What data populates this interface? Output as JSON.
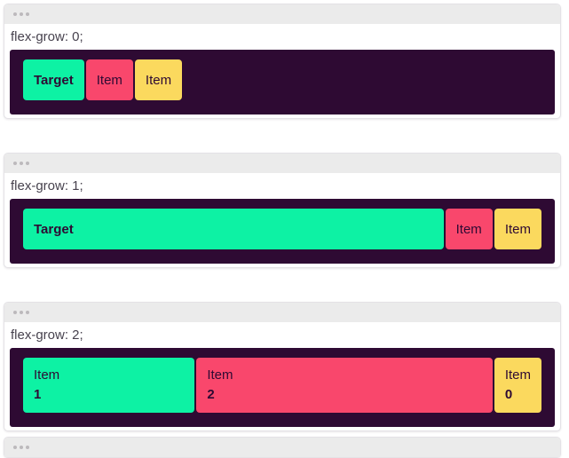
{
  "colors": {
    "page_bg": "#ffffff",
    "window_bg": "#ffffff",
    "window_border": "#e4e2e6",
    "titlebar_bg": "#ebebeb",
    "titlebar_dot": "#bcb9bc",
    "label_text": "#47424e",
    "container_bg": "#2e0a33",
    "item_text": "#2e0a33",
    "green": "#0df2a4",
    "pink": "#f9476c",
    "yellow": "#fbd95e"
  },
  "windows": [
    {
      "label": "flex-grow: 0;",
      "items": [
        {
          "text": "Target",
          "color": "green",
          "grow": "0"
        },
        {
          "text": "Item",
          "color": "pink",
          "grow": "0"
        },
        {
          "text": "Item",
          "color": "yellow",
          "grow": "0"
        }
      ]
    },
    {
      "label": "flex-grow: 1;",
      "items": [
        {
          "text": "Target",
          "color": "green",
          "grow": "1"
        },
        {
          "text": "Item",
          "color": "pink",
          "grow": "0"
        },
        {
          "text": "Item",
          "color": "yellow",
          "grow": "0"
        }
      ]
    },
    {
      "label": "flex-grow: 2;",
      "items": [
        {
          "text": "Item",
          "value": "1",
          "color": "green",
          "grow": "1"
        },
        {
          "text": "Item",
          "value": "2",
          "color": "pink",
          "grow": "2"
        },
        {
          "text": "Item",
          "value": "0",
          "color": "yellow",
          "grow": "0"
        }
      ]
    },
    {
      "label": "",
      "partial": true,
      "items": []
    }
  ]
}
